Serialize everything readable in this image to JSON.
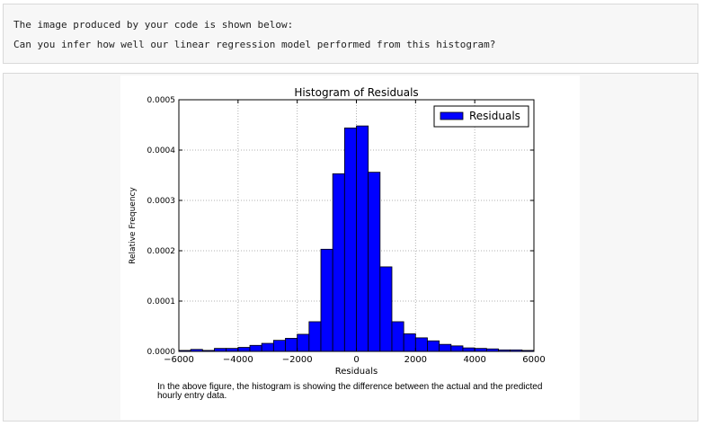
{
  "prompt": {
    "line1": "The image produced by your code is shown below:",
    "line2": "Can you infer how well our linear regression model performed from this histogram?"
  },
  "caption": {
    "text": "In the above figure, the histogram is showing the difference between the actual and the predicted hourly entry data."
  },
  "chart_data": {
    "type": "bar",
    "title": "Histogram of Residuals",
    "xlabel": "Residuals",
    "ylabel": "Relative Frequency",
    "xlim": [
      -6000,
      6000
    ],
    "ylim": [
      0,
      0.0005
    ],
    "xticks": [
      -6000,
      -4000,
      -2000,
      0,
      2000,
      4000,
      6000
    ],
    "xtick_labels": [
      "−6000",
      "−4000",
      "−2000",
      "0",
      "2000",
      "4000",
      "6000"
    ],
    "yticks": [
      0,
      0.0001,
      0.0002,
      0.0003,
      0.0004,
      0.0005
    ],
    "ytick_labels": [
      "0.0000",
      "0.0001",
      "0.0002",
      "0.0003",
      "0.0004",
      "0.0005"
    ],
    "grid": true,
    "legend": "top-right",
    "bar_color": "#0000ff",
    "series": [
      {
        "name": "Residuals",
        "bin_edges": [
          -6000,
          -5600,
          -5200,
          -4800,
          -4400,
          -4000,
          -3600,
          -3200,
          -2800,
          -2400,
          -2000,
          -1600,
          -1200,
          -800,
          -400,
          0,
          400,
          800,
          1200,
          1600,
          2000,
          2400,
          2800,
          3200,
          3600,
          4000,
          4400,
          4800,
          5200,
          5600,
          6000
        ],
        "values": [
          2e-06,
          4e-06,
          2e-06,
          6e-06,
          6e-06,
          8e-06,
          1.2e-05,
          1.6e-05,
          2.2e-05,
          2.6e-05,
          3.4e-05,
          5.9e-05,
          0.000203,
          0.000353,
          0.000444,
          0.000448,
          0.000356,
          0.000168,
          5.9e-05,
          3.5e-05,
          2.7e-05,
          2.1e-05,
          1.4e-05,
          1.1e-05,
          7e-06,
          6e-06,
          5e-06,
          3e-06,
          3e-06,
          2e-06
        ]
      }
    ]
  }
}
